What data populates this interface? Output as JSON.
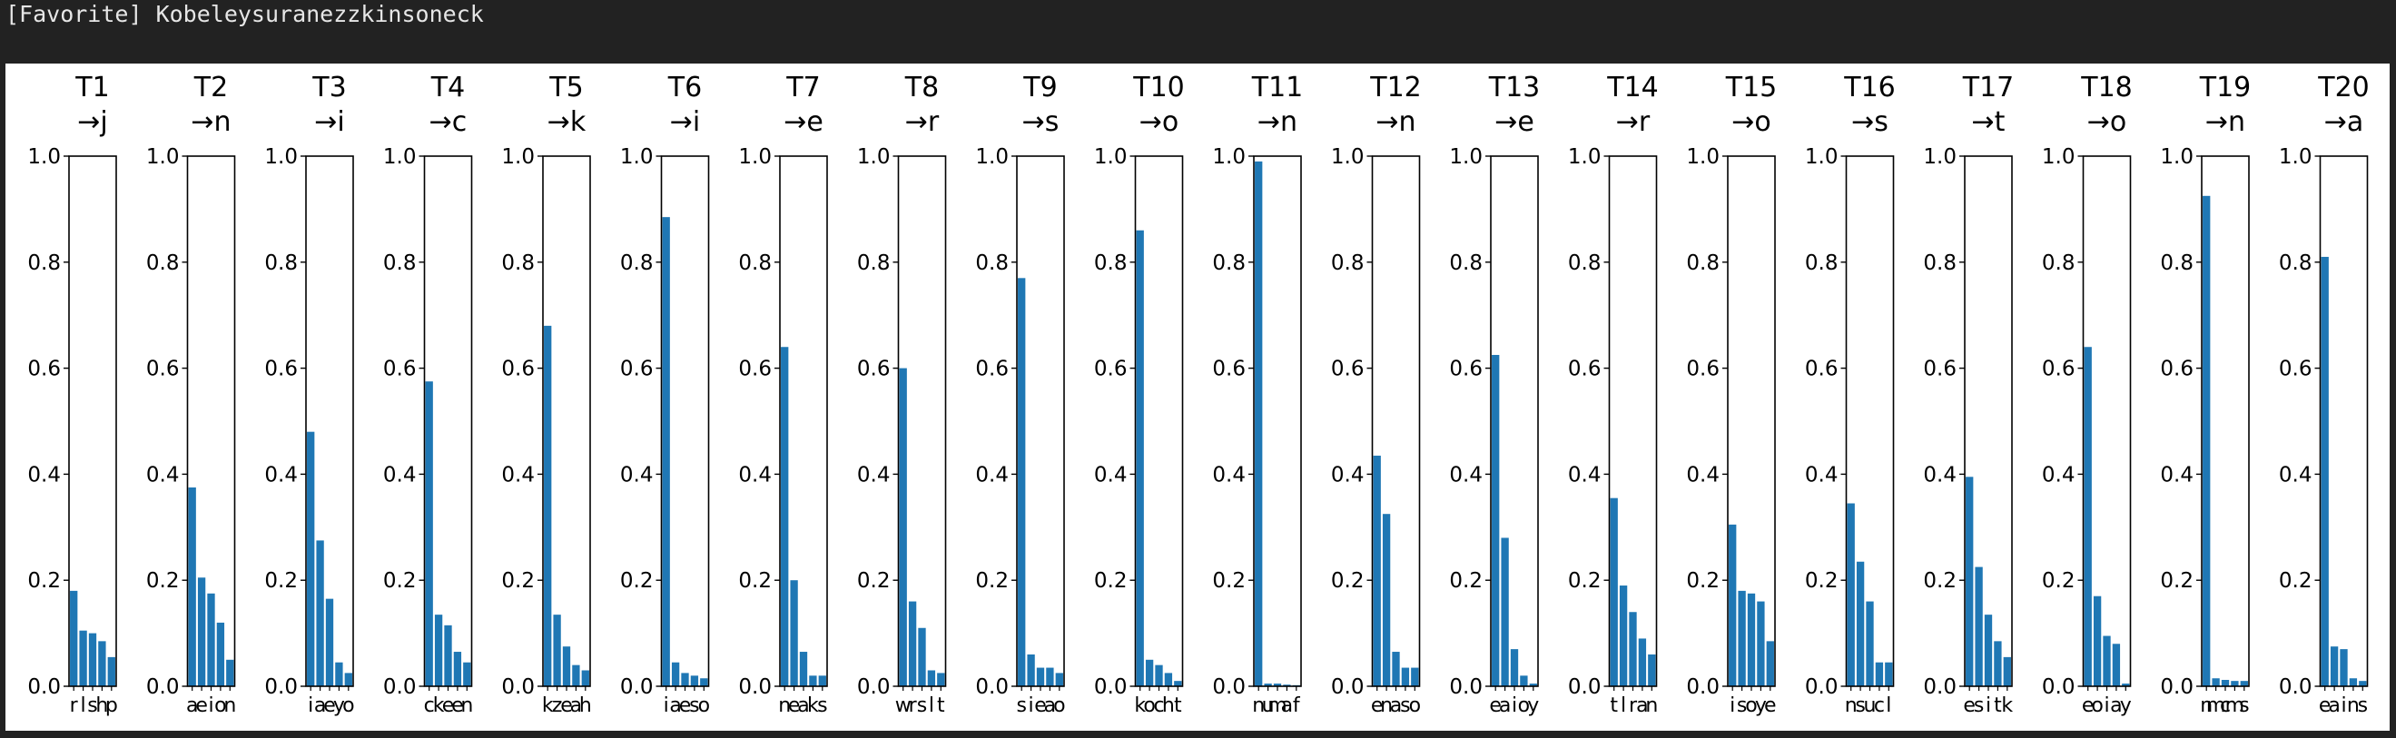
{
  "header": {
    "title": "[Favorite] Kobeleysuranezzkinsoneck"
  },
  "colors": {
    "bar": "#1f77b4",
    "header_bg": "#222222",
    "figure_bg": "#ffffff"
  },
  "chart_data": {
    "type": "bar",
    "ylim": [
      0,
      1.0
    ],
    "yticks": [
      "0.0",
      "0.2",
      "0.4",
      "0.6",
      "0.8",
      "1.0"
    ],
    "grid": false,
    "panels": [
      {
        "title": "T1",
        "subtitle": "→j",
        "categories": [
          "r",
          "l",
          "s",
          "h",
          "p"
        ],
        "values": [
          0.18,
          0.105,
          0.1,
          0.085,
          0.055
        ]
      },
      {
        "title": "T2",
        "subtitle": "→n",
        "categories": [
          "a",
          "e",
          "i",
          "o",
          "n"
        ],
        "values": [
          0.375,
          0.205,
          0.175,
          0.12,
          0.05
        ]
      },
      {
        "title": "T3",
        "subtitle": "→i",
        "categories": [
          "i",
          "a",
          "e",
          "y",
          "o"
        ],
        "values": [
          0.48,
          0.275,
          0.165,
          0.045,
          0.025
        ]
      },
      {
        "title": "T4",
        "subtitle": "→c",
        "categories": [
          "c",
          "k",
          "e",
          "e",
          "n"
        ],
        "values": [
          0.575,
          0.135,
          0.115,
          0.065,
          0.045
        ]
      },
      {
        "title": "T5",
        "subtitle": "→k",
        "categories": [
          "k",
          "z",
          "e",
          "a",
          "h"
        ],
        "values": [
          0.68,
          0.135,
          0.075,
          0.04,
          0.03
        ]
      },
      {
        "title": "T6",
        "subtitle": "→i",
        "categories": [
          "i",
          "a",
          "e",
          "s",
          "o"
        ],
        "values": [
          0.885,
          0.045,
          0.025,
          0.02,
          0.015
        ]
      },
      {
        "title": "T7",
        "subtitle": "→e",
        "categories": [
          "n",
          "e",
          "a",
          "k",
          "s"
        ],
        "values": [
          0.64,
          0.2,
          0.065,
          0.02,
          0.02
        ]
      },
      {
        "title": "T8",
        "subtitle": "→r",
        "categories": [
          "w",
          "r",
          "s",
          "l",
          "t"
        ],
        "values": [
          0.6,
          0.16,
          0.11,
          0.03,
          0.025
        ]
      },
      {
        "title": "T9",
        "subtitle": "→s",
        "categories": [
          "s",
          "i",
          "e",
          "a",
          "o"
        ],
        "values": [
          0.77,
          0.06,
          0.035,
          0.035,
          0.025
        ]
      },
      {
        "title": "T10",
        "subtitle": "→o",
        "categories": [
          "k",
          "o",
          "c",
          "h",
          "t"
        ],
        "values": [
          0.86,
          0.05,
          0.04,
          0.025,
          0.01
        ]
      },
      {
        "title": "T11",
        "subtitle": "→n",
        "categories": [
          "n",
          "u",
          "m",
          "a",
          "f"
        ],
        "values": [
          0.99,
          0.005,
          0.005,
          0.003,
          0.002
        ]
      },
      {
        "title": "T12",
        "subtitle": "→n",
        "categories": [
          "e",
          "n",
          "a",
          "s",
          "o"
        ],
        "values": [
          0.435,
          0.325,
          0.065,
          0.035,
          0.035
        ]
      },
      {
        "title": "T13",
        "subtitle": "→e",
        "categories": [
          "e",
          "a",
          "i",
          "o",
          "y"
        ],
        "values": [
          0.625,
          0.28,
          0.07,
          0.02,
          0.005
        ]
      },
      {
        "title": "T14",
        "subtitle": "→r",
        "categories": [
          "t",
          "l",
          "r",
          "a",
          "n"
        ],
        "values": [
          0.355,
          0.19,
          0.14,
          0.09,
          0.06
        ]
      },
      {
        "title": "T15",
        "subtitle": "→o",
        "categories": [
          "i",
          "s",
          "o",
          "y",
          "e"
        ],
        "values": [
          0.305,
          0.18,
          0.175,
          0.16,
          0.085
        ]
      },
      {
        "title": "T16",
        "subtitle": "→s",
        "categories": [
          "n",
          "s",
          "u",
          "c",
          "l"
        ],
        "values": [
          0.345,
          0.235,
          0.16,
          0.045,
          0.045
        ]
      },
      {
        "title": "T17",
        "subtitle": "→t",
        "categories": [
          "e",
          "s",
          "i",
          "t",
          "k"
        ],
        "values": [
          0.395,
          0.225,
          0.135,
          0.085,
          0.055
        ]
      },
      {
        "title": "T18",
        "subtitle": "→o",
        "categories": [
          "e",
          "o",
          "i",
          "a",
          "y"
        ],
        "values": [
          0.64,
          0.17,
          0.095,
          0.08,
          0.005
        ]
      },
      {
        "title": "T19",
        "subtitle": "→n",
        "categories": [
          "n",
          "m",
          "c",
          "m",
          "s"
        ],
        "values": [
          0.925,
          0.015,
          0.012,
          0.01,
          0.01
        ]
      },
      {
        "title": "T20",
        "subtitle": "→a",
        "categories": [
          "e",
          "a",
          "i",
          "n",
          "s"
        ],
        "values": [
          0.81,
          0.075,
          0.07,
          0.015,
          0.01
        ]
      }
    ]
  }
}
